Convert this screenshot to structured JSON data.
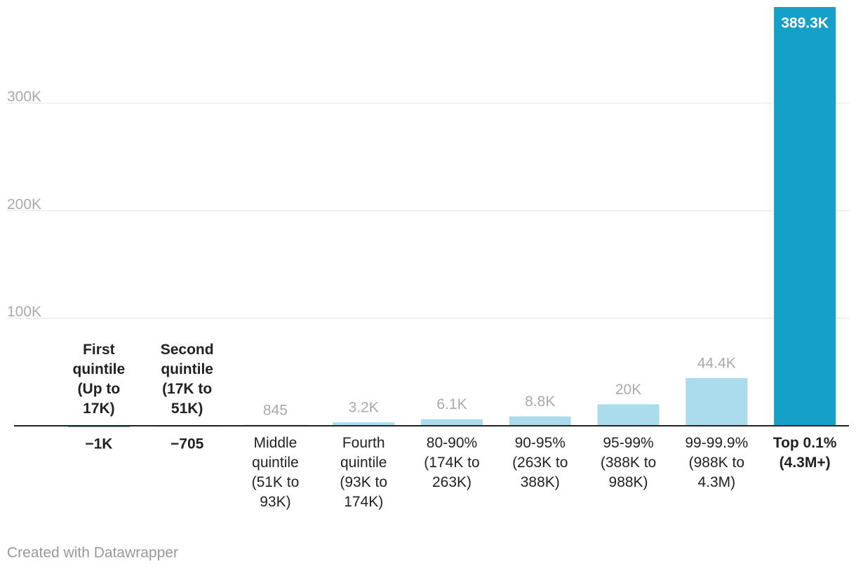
{
  "chart_data": {
    "type": "bar",
    "categories": [
      "First quintile (Up to 17K)",
      "Second quintile (17K to 51K)",
      "Middle quintile (51K to 93K)",
      "Fourth quintile (93K to 174K)",
      "80-90% (174K to 263K)",
      "90-95% (263K to 388K)",
      "95-99% (388K to 988K)",
      "99-99.9% (988K to 4.3M)",
      "Top 0.1% (4.3M+)"
    ],
    "values": [
      -1000,
      -705,
      845,
      3200,
      6100,
      8800,
      20000,
      44400,
      389300
    ],
    "value_labels": [
      "−1K",
      "−705",
      "845",
      "3.2K",
      "6.1K",
      "8.8K",
      "20K",
      "44.4K",
      "389.3K"
    ],
    "colors": [
      "#0b5f7c",
      "#0b5f7c",
      "#abdcec",
      "#abdcec",
      "#abdcec",
      "#abdcec",
      "#abdcec",
      "#abdcec",
      "#15a0ca"
    ],
    "bold": [
      true,
      true,
      false,
      false,
      false,
      false,
      false,
      false,
      true
    ],
    "ylim": [
      0,
      389300
    ],
    "yticks": [
      {
        "value": 100000,
        "label": "100K"
      },
      {
        "value": 200000,
        "label": "200K"
      },
      {
        "value": 300000,
        "label": "300K"
      }
    ],
    "grid": true,
    "footer": "Created with Datawrapper"
  }
}
